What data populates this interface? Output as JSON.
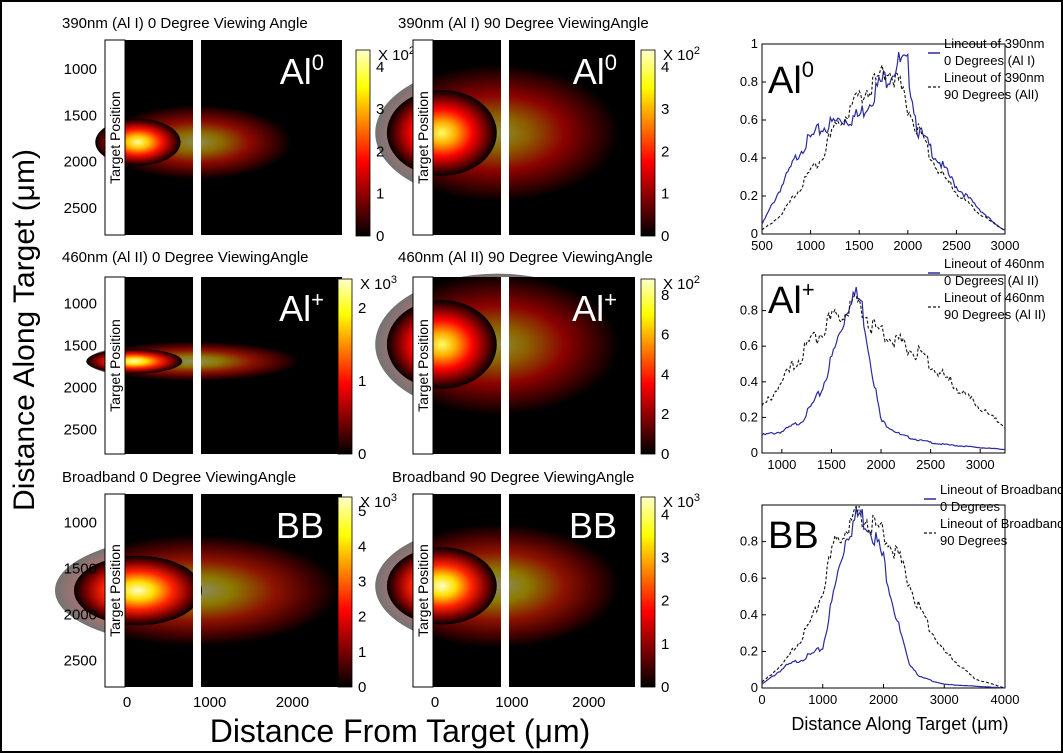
{
  "figure": {
    "ylabel_main": "Distance Along Target (μm)",
    "xlabel_main": "Distance From Target (μm)",
    "xlabel_right": "Distance Along Target (μm)",
    "target_label": "Target Position"
  },
  "colors": {
    "blue": "#2b2b9c",
    "black": "#111111",
    "frame": "#000000"
  },
  "chart_data": [
    {
      "type": "heatmap",
      "id": "h1",
      "title": "390nm (Al I) 0 Degree Viewing Angle",
      "species": "Al",
      "species_sup": "0",
      "yticks": [
        "1000",
        "1500",
        "2000",
        "2500"
      ],
      "xticks": [],
      "cbar_ticks": [
        "0",
        "1",
        "2",
        "3",
        "4"
      ],
      "cbar_mult": "X 10",
      "cbar_exp": "2",
      "hotspot": {
        "x_um": 300,
        "y_um": 1800,
        "intensity": 0.95,
        "spread_x": 0.4,
        "spread_y": 0.12
      }
    },
    {
      "type": "heatmap",
      "id": "h2",
      "title": "390nm (Al I) 90 Degree ViewingAngle",
      "species": "Al",
      "species_sup": "0",
      "yticks": [],
      "xticks": [],
      "cbar_ticks": [
        "0",
        "1",
        "2",
        "3",
        "4"
      ],
      "cbar_mult": "X 10",
      "cbar_exp": "2",
      "hotspot": {
        "x_um": 200,
        "y_um": 1700,
        "intensity": 0.9,
        "spread_x": 0.55,
        "spread_y": 0.22
      }
    },
    {
      "type": "heatmap",
      "id": "h3",
      "title": "460nm (Al II) 0 Degree ViewingAngle",
      "species": "Al",
      "species_sup": "+",
      "yticks": [
        "1000",
        "1500",
        "2000",
        "2500"
      ],
      "xticks": [],
      "cbar_ticks": [
        "0",
        "1",
        "2"
      ],
      "cbar_mult": "X 10",
      "cbar_exp": "3",
      "hotspot": {
        "x_um": 200,
        "y_um": 1700,
        "intensity": 1.0,
        "spread_x": 0.45,
        "spread_y": 0.07
      }
    },
    {
      "type": "heatmap",
      "id": "h4",
      "title": "460nm (Al II) 90 Degree ViewingAngle",
      "species": "Al",
      "species_sup": "+",
      "yticks": [],
      "xticks": [],
      "cbar_ticks": [
        "0",
        "2",
        "4",
        "6",
        "8"
      ],
      "cbar_mult": "X 10",
      "cbar_exp": "2",
      "hotspot": {
        "x_um": 200,
        "y_um": 1500,
        "intensity": 0.9,
        "spread_x": 0.55,
        "spread_y": 0.25
      }
    },
    {
      "type": "heatmap",
      "id": "h5",
      "title": "Broadband 0 Degree ViewingAngle",
      "species": "BB",
      "species_sup": "",
      "yticks": [
        "1000",
        "1500",
        "2000",
        "2500"
      ],
      "xticks": [
        "0",
        "1000",
        "2000"
      ],
      "cbar_ticks": [
        "0",
        "1",
        "2",
        "3",
        "4",
        "5"
      ],
      "cbar_mult": "X 10",
      "cbar_exp": "3",
      "hotspot": {
        "x_um": 300,
        "y_um": 1750,
        "intensity": 1.0,
        "spread_x": 0.6,
        "spread_y": 0.18
      }
    },
    {
      "type": "heatmap",
      "id": "h6",
      "title": "Broadband 90 Degree ViewingAngle",
      "species": "BB",
      "species_sup": "",
      "yticks": [],
      "xticks": [
        "0",
        "1000",
        "2000"
      ],
      "cbar_ticks": [
        "0",
        "1",
        "2",
        "3",
        "4"
      ],
      "cbar_mult": "X 10",
      "cbar_exp": "3",
      "hotspot": {
        "x_um": 200,
        "y_um": 1700,
        "intensity": 1.0,
        "spread_x": 0.55,
        "spread_y": 0.2
      }
    },
    {
      "type": "line",
      "id": "l1",
      "species": "Al",
      "species_sup": "0",
      "xlim": [
        500,
        3000
      ],
      "ylim": [
        0,
        1
      ],
      "xticks": [
        "500",
        "1000",
        "1500",
        "2000",
        "2500",
        "3000"
      ],
      "yticks": [
        "0",
        "0.2",
        "0.4",
        "0.6",
        "0.8",
        "1"
      ],
      "legend": [
        "Lineout of 390nm",
        "0 Degrees (Al I)",
        "Lineout of 390nm",
        "90 Degrees (AlI)"
      ],
      "series": [
        {
          "name": "Lineout of 390nm 0 Degrees (Al I)",
          "style": "blue",
          "x": [
            500,
            700,
            900,
            1100,
            1300,
            1500,
            1700,
            1900,
            2000,
            2100,
            2300,
            2500,
            2700,
            2900,
            3000
          ],
          "y": [
            0.05,
            0.25,
            0.45,
            0.55,
            0.6,
            0.62,
            0.78,
            0.9,
            0.88,
            0.55,
            0.4,
            0.25,
            0.15,
            0.05,
            0.02
          ]
        },
        {
          "name": "Lineout of 390nm 90 Degrees (AlI)",
          "style": "black-dash",
          "x": [
            500,
            700,
            900,
            1100,
            1300,
            1500,
            1700,
            1800,
            1900,
            2100,
            2300,
            2500,
            2700,
            2900,
            3000
          ],
          "y": [
            0.02,
            0.1,
            0.25,
            0.4,
            0.6,
            0.72,
            0.82,
            0.88,
            0.8,
            0.55,
            0.35,
            0.22,
            0.12,
            0.05,
            0.02
          ]
        }
      ]
    },
    {
      "type": "line",
      "id": "l2",
      "species": "Al",
      "species_sup": "+",
      "xlim": [
        800,
        3250
      ],
      "ylim": [
        0,
        1
      ],
      "xticks": [
        "1000",
        "1500",
        "2000",
        "2500",
        "3000"
      ],
      "yticks": [
        "0",
        "0.2",
        "0.4",
        "0.6",
        "0.8"
      ],
      "legend": [
        "Lineout of 460nm",
        "0 Degrees (Al II)",
        "Lineout of 460nm",
        "90 Degrees (Al II)"
      ],
      "series": [
        {
          "name": "Lineout of 460nm 0 Degrees (Al II)",
          "style": "blue",
          "x": [
            800,
            1000,
            1200,
            1400,
            1600,
            1700,
            1800,
            1900,
            2000,
            2200,
            2400,
            2600,
            2800,
            3000,
            3250
          ],
          "y": [
            0.1,
            0.12,
            0.18,
            0.35,
            0.7,
            0.9,
            0.85,
            0.5,
            0.18,
            0.1,
            0.07,
            0.05,
            0.04,
            0.03,
            0.02
          ]
        },
        {
          "name": "Lineout of 460nm 90 Degrees (Al II)",
          "style": "black-dash",
          "x": [
            800,
            1000,
            1200,
            1400,
            1600,
            1700,
            1800,
            1900,
            2000,
            2200,
            2400,
            2600,
            2800,
            3000,
            3250
          ],
          "y": [
            0.25,
            0.4,
            0.55,
            0.7,
            0.78,
            0.85,
            0.82,
            0.72,
            0.68,
            0.62,
            0.55,
            0.45,
            0.35,
            0.25,
            0.15
          ]
        }
      ]
    },
    {
      "type": "line",
      "id": "l3",
      "species": "BB",
      "species_sup": "",
      "xlim": [
        0,
        4000
      ],
      "ylim": [
        0,
        1
      ],
      "xticks": [
        "0",
        "1000",
        "2000",
        "3000",
        "4000"
      ],
      "yticks": [
        "0",
        "0.2",
        "0.4",
        "0.6",
        "0.8"
      ],
      "legend": [
        "Lineout of Broadband",
        "0 Degrees",
        "Lineout of Broadband",
        "90 Degrees"
      ],
      "series": [
        {
          "name": "Lineout of Broadband 0 Degrees",
          "style": "blue",
          "x": [
            0,
            400,
            800,
            1000,
            1200,
            1400,
            1600,
            1800,
            2000,
            2200,
            2400,
            2600,
            3000,
            3500,
            4000
          ],
          "y": [
            0.02,
            0.12,
            0.18,
            0.22,
            0.55,
            0.85,
            0.95,
            0.88,
            0.7,
            0.4,
            0.15,
            0.06,
            0.02,
            0.01,
            0.0
          ]
        },
        {
          "name": "Lineout of Broadband 90 Degrees",
          "style": "black-dash",
          "x": [
            0,
            400,
            800,
            1000,
            1200,
            1400,
            1600,
            1800,
            2000,
            2200,
            2400,
            2600,
            3000,
            3500,
            4000
          ],
          "y": [
            0.03,
            0.15,
            0.35,
            0.55,
            0.78,
            0.9,
            0.95,
            0.9,
            0.85,
            0.75,
            0.6,
            0.42,
            0.2,
            0.05,
            0.0
          ]
        }
      ]
    }
  ]
}
